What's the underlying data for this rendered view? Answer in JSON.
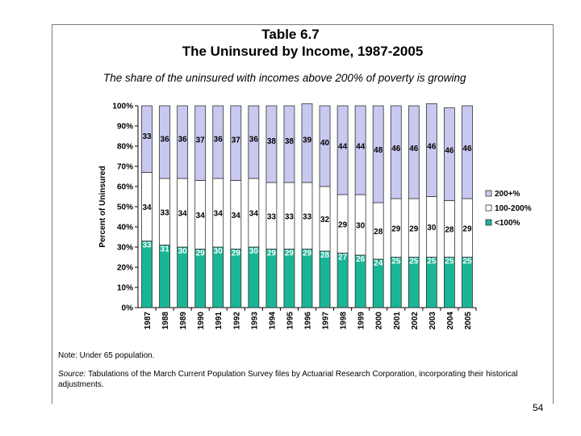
{
  "chart_data": {
    "type": "bar",
    "stacked": true,
    "title": "Table 6.7",
    "subtitle": "The Uninsured by Income, 1987-2005",
    "caption": "The share of the uninsured with incomes above 200% of poverty is growing",
    "ylabel": "Percent of Uninsured",
    "xlabel": "",
    "ylim": [
      0,
      100
    ],
    "yticks": [
      "0%",
      "10%",
      "20%",
      "30%",
      "40%",
      "50%",
      "60%",
      "70%",
      "80%",
      "90%",
      "100%"
    ],
    "grid": false,
    "legend_position": "right",
    "categories": [
      "1987",
      "1988",
      "1989",
      "1990",
      "1991",
      "1992",
      "1993",
      "1994",
      "1995",
      "1996",
      "1997",
      "1998",
      "1999",
      "2000",
      "2001",
      "2002",
      "2003",
      "2004",
      "2005"
    ],
    "series": [
      {
        "name": "<100%",
        "color": "#1ab596",
        "label_color": "#ffffff",
        "values": [
          33,
          31,
          30,
          29,
          30,
          29,
          30,
          29,
          29,
          29,
          28,
          27,
          26,
          24,
          25,
          25,
          25,
          25,
          25
        ]
      },
      {
        "name": "100-200%",
        "color": "#ffffff",
        "label_color": "#000000",
        "values": [
          34,
          33,
          34,
          34,
          34,
          34,
          34,
          33,
          33,
          33,
          32,
          29,
          30,
          28,
          29,
          29,
          30,
          28,
          29
        ]
      },
      {
        "name": "200+%",
        "color": "#c8c8f0",
        "label_color": "#000000",
        "values": [
          33,
          36,
          36,
          37,
          36,
          37,
          36,
          38,
          38,
          39,
          40,
          44,
          44,
          48,
          46,
          46,
          46,
          46,
          46
        ]
      }
    ],
    "legend_order": [
      "200+%",
      "100-200%",
      "<100%"
    ]
  },
  "notes": {
    "note": "Note: Under 65 population.",
    "source_label": "Source:",
    "source_text": " Tabulations of the March Current Population Survey files by Actuarial Research Corporation, incorporating their historical adjustments."
  },
  "page_number": "54",
  "colors": {
    "border": "#333333",
    "frame": "#7a7a7a"
  }
}
